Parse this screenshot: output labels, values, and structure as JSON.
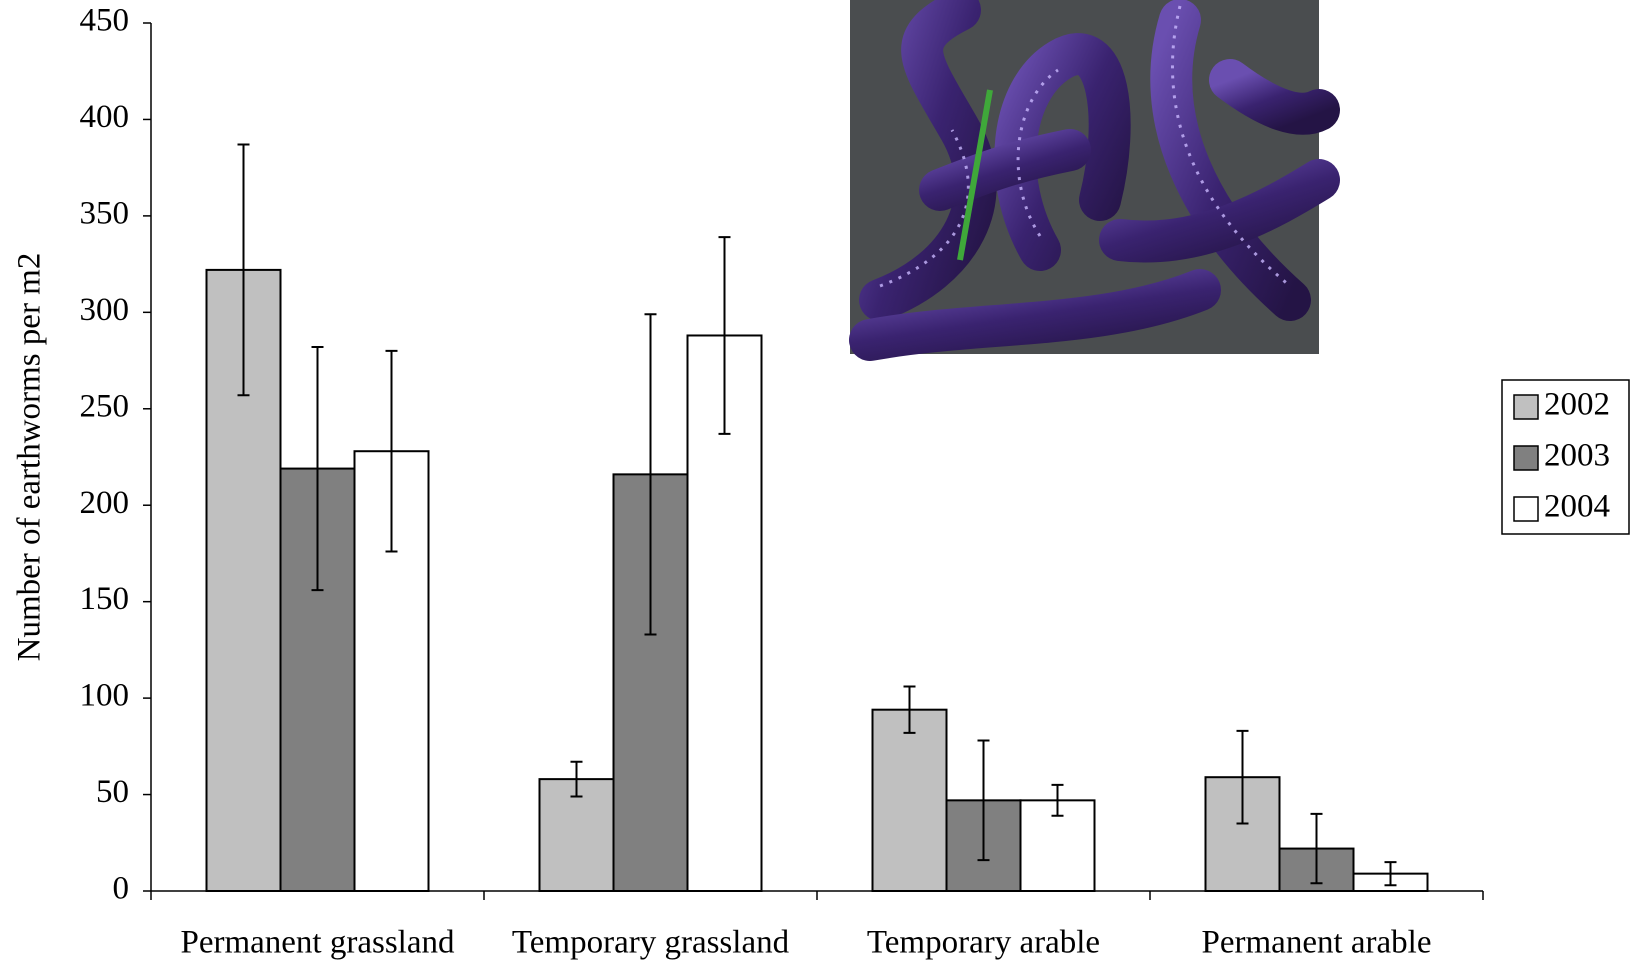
{
  "chart_data": {
    "type": "bar",
    "y_label": "Number of earthworms per m2",
    "categories": [
      "Permanent grassland",
      "Temporary grassland",
      "Temporary arable",
      "Permanent arable"
    ],
    "series": [
      {
        "name": "2002",
        "color": "#c0c0c0",
        "values": [
          322,
          58,
          94,
          59
        ],
        "errors": [
          65,
          9,
          12,
          24
        ]
      },
      {
        "name": "2003",
        "color": "#808080",
        "values": [
          219,
          216,
          47,
          22
        ],
        "errors": [
          63,
          83,
          31,
          18
        ]
      },
      {
        "name": "2004",
        "color": "#ffffff",
        "values": [
          228,
          288,
          47,
          9
        ],
        "errors": [
          52,
          51,
          8,
          6
        ]
      }
    ],
    "ylim": [
      0,
      450
    ],
    "yticks": [
      0,
      50,
      100,
      150,
      200,
      250,
      300,
      350,
      400,
      450
    ],
    "grid": false,
    "legend": "right"
  }
}
